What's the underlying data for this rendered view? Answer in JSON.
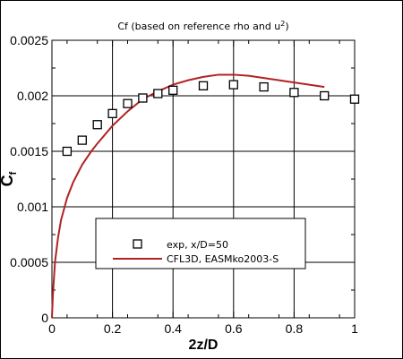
{
  "chart_data": {
    "type": "line",
    "title": "Cf (based on reference rho and u",
    "title_sup": "2",
    "title_end": ")",
    "xlabel": "2z/D",
    "ylabel": "C",
    "ylabel_sub": "f",
    "xlim": [
      0,
      1
    ],
    "ylim": [
      0,
      0.0025
    ],
    "xticks": [
      "0",
      "0.2",
      "0.4",
      "0.6",
      "0.8",
      "1"
    ],
    "yticks": [
      "0",
      "0.0005",
      "0.001",
      "0.0015",
      "0.002",
      "0.0025"
    ],
    "xtick_values": [
      0,
      0.2,
      0.4,
      0.6,
      0.8,
      1.0
    ],
    "ytick_values": [
      0,
      0.0005,
      0.001,
      0.0015,
      0.002,
      0.0025
    ],
    "grid": true,
    "legend_position": "bottom-center",
    "series": [
      {
        "name": "exp, x/D=50",
        "kind": "scatter",
        "marker": "square",
        "color": "#000000",
        "x": [
          0.05,
          0.1,
          0.15,
          0.2,
          0.25,
          0.3,
          0.35,
          0.4,
          0.5,
          0.6,
          0.7,
          0.8,
          0.9,
          1.0
        ],
        "y": [
          0.0015,
          0.0016,
          0.00174,
          0.00184,
          0.00193,
          0.00198,
          0.00202,
          0.00205,
          0.00209,
          0.0021,
          0.00208,
          0.00203,
          0.002,
          0.00197
        ]
      },
      {
        "name": "CFL3D, EASMko2003-S",
        "kind": "line",
        "color": "#b22222",
        "x": [
          0.0,
          0.003,
          0.01,
          0.02,
          0.03,
          0.05,
          0.07,
          0.1,
          0.13,
          0.15,
          0.2,
          0.25,
          0.3,
          0.35,
          0.4,
          0.45,
          0.5,
          0.55,
          0.6,
          0.65,
          0.7,
          0.75,
          0.8,
          0.85,
          0.9
        ],
        "y": [
          0.0,
          0.0002,
          0.0005,
          0.00072,
          0.00088,
          0.00108,
          0.00122,
          0.00138,
          0.0015,
          0.00157,
          0.00173,
          0.00186,
          0.00197,
          0.00204,
          0.0021,
          0.00214,
          0.00217,
          0.00219,
          0.00219,
          0.00218,
          0.00216,
          0.00214,
          0.00212,
          0.0021,
          0.00208
        ]
      }
    ]
  }
}
